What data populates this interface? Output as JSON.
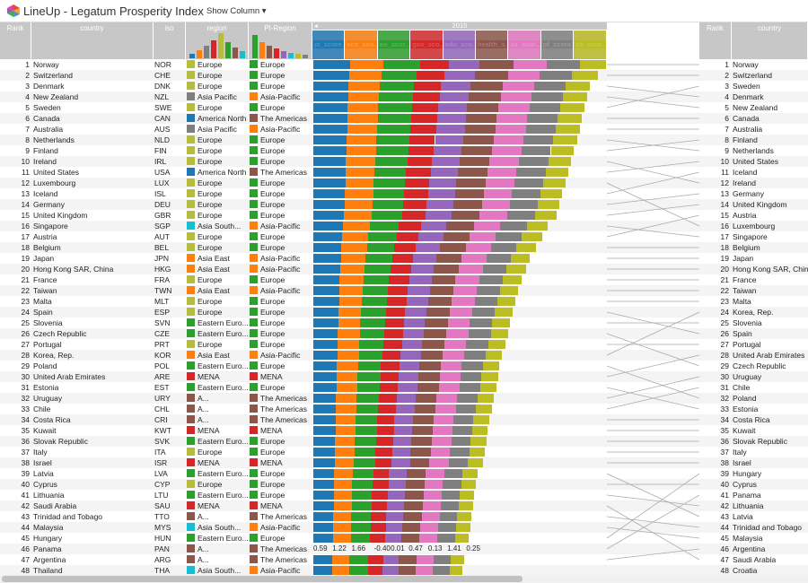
{
  "app": {
    "title": "LineUp - Legatum Prosperity Index",
    "show_column": "Show Column",
    "show_column_caret": "▾"
  },
  "colors": {
    "Europe": "#b5bd3a",
    "Asia Pacific": "#7f7f7f",
    "America North": "#1f77b4",
    "Asia South...": "#17becf",
    "Asia East": "#ff7f0e",
    "Eastern Euro...": "#2ca02c",
    "A...": "#8c564b",
    "MENA": "#d62728",
    "pi_Europe": "#2ca02c",
    "pi_Asia-Pacific": "#ff7f0e",
    "pi_The Americas": "#8c564b",
    "pi_MENA": "#d62728"
  },
  "header": {
    "rank": "Rank",
    "country": "country",
    "iso": "iso",
    "region": "region",
    "pi_region": "PI-Region",
    "year": "2015",
    "year_caret": "◂",
    "rank2": "Rank",
    "country2": "country",
    "subcols": [
      {
        "label": "pi_score...",
        "color": "#1f77b4"
      },
      {
        "label": "eco_sco...",
        "color": "#ff7f0e"
      },
      {
        "label": "eo_scor...",
        "color": "#2ca02c"
      },
      {
        "label": "gov_sco...",
        "color": "#d62728"
      },
      {
        "label": "edu_sco...",
        "color": "#9467bd"
      },
      {
        "label": "health_s...",
        "color": "#8c564b"
      },
      {
        "label": "ss_scor...",
        "color": "#e377c2"
      },
      {
        "label": "pf_score...",
        "color": "#7f7f7f"
      },
      {
        "label": "sk_scor...",
        "color": "#bcbd22"
      }
    ]
  },
  "seg_colors": [
    "#1f77b4",
    "#ff7f0e",
    "#2ca02c",
    "#d62728",
    "#9467bd",
    "#8c564b",
    "#e377c2",
    "#7f7f7f",
    "#bcbd22"
  ],
  "hover_row": {
    "index": 45,
    "values": [
      "0.59",
      "1.22",
      "1.66",
      "-0.40",
      "0.01",
      "0.47",
      "0.13",
      "1.41",
      "0.25"
    ]
  },
  "rows": [
    {
      "rank": "1",
      "country": "Norway",
      "iso": "NOR",
      "region": "Europe",
      "pi": "Europe",
      "total": 1.0
    },
    {
      "rank": "2",
      "country": "Switzerland",
      "iso": "CHE",
      "region": "Europe",
      "pi": "Europe",
      "total": 0.97
    },
    {
      "rank": "3",
      "country": "Denmark",
      "iso": "DNK",
      "region": "Europe",
      "pi": "Europe",
      "total": 0.945
    },
    {
      "rank": "4",
      "country": "New Zealand",
      "iso": "NZL",
      "region": "Asia Pacific",
      "pi": "Asia-Pacific",
      "total": 0.935
    },
    {
      "rank": "5",
      "country": "Sweden",
      "iso": "SWE",
      "region": "Europe",
      "pi": "Europe",
      "total": 0.925
    },
    {
      "rank": "6",
      "country": "Canada",
      "iso": "CAN",
      "region": "America North",
      "pi": "The Americas",
      "total": 0.915
    },
    {
      "rank": "7",
      "country": "Australia",
      "iso": "AUS",
      "region": "Asia Pacific",
      "pi": "Asia-Pacific",
      "total": 0.91
    },
    {
      "rank": "8",
      "country": "Netherlands",
      "iso": "NLD",
      "region": "Europe",
      "pi": "Europe",
      "total": 0.9
    },
    {
      "rank": "9",
      "country": "Finland",
      "iso": "FIN",
      "region": "Europe",
      "pi": "Europe",
      "total": 0.89
    },
    {
      "rank": "10",
      "country": "Ireland",
      "iso": "IRL",
      "region": "Europe",
      "pi": "Europe",
      "total": 0.88
    },
    {
      "rank": "11",
      "country": "United States",
      "iso": "USA",
      "region": "America North",
      "pi": "The Americas",
      "total": 0.87
    },
    {
      "rank": "12",
      "country": "Luxembourg",
      "iso": "LUX",
      "region": "Europe",
      "pi": "Europe",
      "total": 0.86
    },
    {
      "rank": "13",
      "country": "Iceland",
      "iso": "ISL",
      "region": "Europe",
      "pi": "Europe",
      "total": 0.85
    },
    {
      "rank": "14",
      "country": "Germany",
      "iso": "DEU",
      "region": "Europe",
      "pi": "Europe",
      "total": 0.84
    },
    {
      "rank": "15",
      "country": "United Kingdom",
      "iso": "GBR",
      "region": "Europe",
      "pi": "Europe",
      "total": 0.83
    },
    {
      "rank": "16",
      "country": "Singapore",
      "iso": "SGP",
      "region": "Asia South...",
      "pi": "Asia-Pacific",
      "total": 0.8
    },
    {
      "rank": "17",
      "country": "Austria",
      "iso": "AUT",
      "region": "Europe",
      "pi": "Europe",
      "total": 0.78
    },
    {
      "rank": "18",
      "country": "Belgium",
      "iso": "BEL",
      "region": "Europe",
      "pi": "Europe",
      "total": 0.76
    },
    {
      "rank": "19",
      "country": "Japan",
      "iso": "JPN",
      "region": "Asia East",
      "pi": "Asia-Pacific",
      "total": 0.74
    },
    {
      "rank": "20",
      "country": "Hong Kong SAR, China",
      "iso": "HKG",
      "region": "Asia East",
      "pi": "Asia-Pacific",
      "total": 0.725
    },
    {
      "rank": "21",
      "country": "France",
      "iso": "FRA",
      "region": "Europe",
      "pi": "Europe",
      "total": 0.71
    },
    {
      "rank": "22",
      "country": "Taiwan",
      "iso": "TWN",
      "region": "Asia East",
      "pi": "Asia-Pacific",
      "total": 0.7
    },
    {
      "rank": "23",
      "country": "Malta",
      "iso": "MLT",
      "region": "Europe",
      "pi": "Europe",
      "total": 0.69
    },
    {
      "rank": "24",
      "country": "Spain",
      "iso": "ESP",
      "region": "Europe",
      "pi": "Europe",
      "total": 0.68
    },
    {
      "rank": "25",
      "country": "Slovenia",
      "iso": "SVN",
      "region": "Eastern Euro...",
      "pi": "Europe",
      "total": 0.67
    },
    {
      "rank": "26",
      "country": "Czech Republic",
      "iso": "CZE",
      "region": "Eastern Euro...",
      "pi": "Europe",
      "total": 0.665
    },
    {
      "rank": "27",
      "country": "Portugal",
      "iso": "PRT",
      "region": "Europe",
      "pi": "Europe",
      "total": 0.655
    },
    {
      "rank": "28",
      "country": "Korea, Rep.",
      "iso": "KOR",
      "region": "Asia East",
      "pi": "Asia-Pacific",
      "total": 0.645
    },
    {
      "rank": "29",
      "country": "Poland",
      "iso": "POL",
      "region": "Eastern Euro...",
      "pi": "Europe",
      "total": 0.635
    },
    {
      "rank": "30",
      "country": "United Arab Emirates",
      "iso": "ARE",
      "region": "MENA",
      "pi": "MENA",
      "total": 0.63
    },
    {
      "rank": "31",
      "country": "Estonia",
      "iso": "EST",
      "region": "Eastern Euro...",
      "pi": "Europe",
      "total": 0.625
    },
    {
      "rank": "32",
      "country": "Uruguay",
      "iso": "URY",
      "region": "A...",
      "pi": "The Americas",
      "total": 0.615
    },
    {
      "rank": "33",
      "country": "Chile",
      "iso": "CHL",
      "region": "A...",
      "pi": "The Americas",
      "total": 0.61
    },
    {
      "rank": "34",
      "country": "Costa Rica",
      "iso": "CRI",
      "region": "A...",
      "pi": "The Americas",
      "total": 0.6
    },
    {
      "rank": "35",
      "country": "Kuwait",
      "iso": "KWT",
      "region": "MENA",
      "pi": "MENA",
      "total": 0.595
    },
    {
      "rank": "36",
      "country": "Slovak Republic",
      "iso": "SVK",
      "region": "Eastern Euro...",
      "pi": "Europe",
      "total": 0.59
    },
    {
      "rank": "37",
      "country": "Italy",
      "iso": "ITA",
      "region": "Europe",
      "pi": "Europe",
      "total": 0.585
    },
    {
      "rank": "38",
      "country": "Israel",
      "iso": "ISR",
      "region": "MENA",
      "pi": "MENA",
      "total": 0.58
    },
    {
      "rank": "39",
      "country": "Latvia",
      "iso": "LVA",
      "region": "Eastern Euro...",
      "pi": "Europe",
      "total": 0.56
    },
    {
      "rank": "40",
      "country": "Cyprus",
      "iso": "CYP",
      "region": "Europe",
      "pi": "Europe",
      "total": 0.555
    },
    {
      "rank": "41",
      "country": "Lithuania",
      "iso": "LTU",
      "region": "Eastern Euro...",
      "pi": "Europe",
      "total": 0.55
    },
    {
      "rank": "42",
      "country": "Saudi Arabia",
      "iso": "SAU",
      "region": "MENA",
      "pi": "MENA",
      "total": 0.545
    },
    {
      "rank": "43",
      "country": "Trinidad and Tobago",
      "iso": "TTO",
      "region": "A...",
      "pi": "The Americas",
      "total": 0.54
    },
    {
      "rank": "44",
      "country": "Malaysia",
      "iso": "MYS",
      "region": "Asia South...",
      "pi": "Asia-Pacific",
      "total": 0.535
    },
    {
      "rank": "45",
      "country": "Hungary",
      "iso": "HUN",
      "region": "Eastern Euro...",
      "pi": "Europe",
      "total": 0.53
    },
    {
      "rank": "46",
      "country": "Panama",
      "iso": "PAN",
      "region": "A...",
      "pi": "The Americas",
      "total": 0.52
    },
    {
      "rank": "47",
      "country": "Argentina",
      "iso": "ARG",
      "region": "A...",
      "pi": "The Americas",
      "total": 0.515
    },
    {
      "rank": "48",
      "country": "Thailand",
      "iso": "THA",
      "region": "Asia South...",
      "pi": "Asia-Pacific",
      "total": 0.51
    }
  ],
  "right_rows": [
    "Norway",
    "Switzerland",
    "Sweden",
    "Denmark",
    "New Zealand",
    "Canada",
    "Australia",
    "Finland",
    "Netherlands",
    "United States",
    "Iceland",
    "Ireland",
    "Germany",
    "United Kingdom",
    "Austria",
    "Luxembourg",
    "Singapore",
    "Belgium",
    "Japan",
    "Hong Kong SAR, China",
    "France",
    "Taiwan",
    "Malta",
    "Korea, Rep.",
    "Slovenia",
    "Spain",
    "Portugal",
    "United Arab Emirates",
    "Czech Republic",
    "Uruguay",
    "Chile",
    "Poland",
    "Estonia",
    "Costa Rica",
    "Kuwait",
    "Slovak Republic",
    "Italy",
    "Israel",
    "Hungary",
    "Cyprus",
    "Panama",
    "Lithuania",
    "Latvia",
    "Trinidad and Tobago",
    "Malaysia",
    "Argentina",
    "Saudi Arabia",
    "Croatia"
  ]
}
